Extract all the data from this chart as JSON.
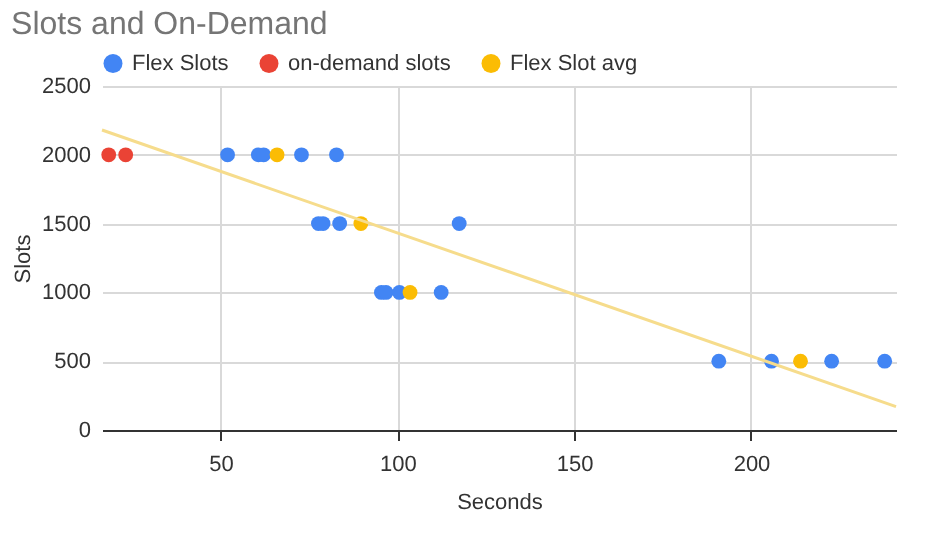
{
  "chart_data": {
    "type": "scatter",
    "title": "Slots and On-Demand",
    "xlabel": "Seconds",
    "ylabel": "Slots",
    "xlim": [
      16.5,
      241
    ],
    "xticks": [
      50,
      100,
      150,
      200
    ],
    "ylim": [
      0,
      2500
    ],
    "yticks": [
      0,
      500,
      1000,
      1500,
      2000,
      2500
    ],
    "grid": true,
    "legend": "top",
    "marker": "circle",
    "series": [
      {
        "name": "Flex Slots",
        "color": "#4285f4",
        "x": [
          52,
          60.7,
          62.2,
          72.9,
          82.8,
          77.7,
          79,
          83.7,
          117.5,
          95.5,
          96.8,
          100.6,
          112.4,
          190.9,
          205.8,
          222.8,
          237.8
        ],
        "values": [
          2000,
          2000,
          2000,
          2000,
          2000,
          1500,
          1500,
          1500,
          1500,
          1000,
          1000,
          1000,
          1000,
          500,
          500,
          500,
          500
        ]
      },
      {
        "name": "on-demand slots",
        "color": "#ea4335",
        "x": [
          18.4,
          23.2
        ],
        "values": [
          2000,
          2000
        ]
      },
      {
        "name": "Flex Slot avg",
        "color": "#fbbc04",
        "x": [
          66,
          89.7,
          103.6,
          214
        ],
        "values": [
          2000,
          1500,
          1000,
          500
        ]
      },
      {
        "type": "line",
        "marker": "none",
        "color": "#f6dc8c",
        "x": [
          16.5,
          241
        ],
        "values": [
          2180,
          170
        ]
      }
    ]
  }
}
